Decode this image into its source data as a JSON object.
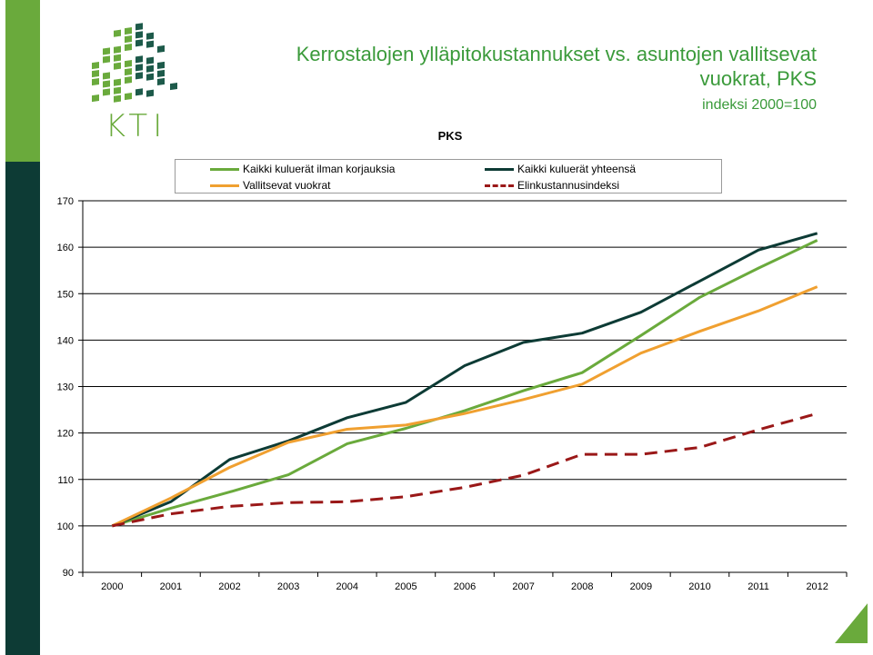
{
  "colors": {
    "sidebar_top": "#6aaa3c",
    "sidebar_bottom": "#0d3b35",
    "title_color": "#3a9a3a",
    "logo_light": "#6aaa3c",
    "logo_dark": "#1d5a4a"
  },
  "logo": {
    "text": "KTI"
  },
  "header": {
    "title": "Kerrostalojen ylläpitokustannukset vs. asuntojen vallitsevat vuokrat, PKS",
    "subtitle": "indeksi 2000=100"
  },
  "chart_data": {
    "type": "line",
    "title": "PKS",
    "categories": [
      "2000",
      "2001",
      "2002",
      "2003",
      "2004",
      "2005",
      "2006",
      "2007",
      "2008",
      "2009",
      "2010",
      "2011",
      "2012"
    ],
    "ylim": [
      90,
      170
    ],
    "yticks": [
      90,
      100,
      110,
      120,
      130,
      140,
      150,
      160,
      170
    ],
    "grid": true,
    "legend_placement": "top",
    "series": [
      {
        "name": "Kaikki kuluerät ilman korjauksia",
        "color": "#6aaa3c",
        "style": "solid",
        "values": [
          100,
          103.8,
          107.3,
          111,
          117.7,
          121,
          124.8,
          129.1,
          133,
          141,
          149.2,
          155.5,
          161.5
        ]
      },
      {
        "name": "Kaikki kuluerät yhteensä",
        "color": "#0d3b35",
        "style": "solid",
        "values": [
          100,
          105.2,
          114.3,
          118.3,
          123.3,
          126.6,
          134.5,
          139.5,
          141.5,
          146,
          152.7,
          159.4,
          163
        ]
      },
      {
        "name": "Vallitsevat vuokrat",
        "color": "#f0a030",
        "style": "solid",
        "values": [
          100,
          106,
          112.6,
          118,
          120.8,
          121.7,
          124.2,
          127.2,
          130.5,
          137.2,
          141.9,
          146.3,
          151.5
        ]
      },
      {
        "name": "Elinkustannusindeksi",
        "color": "#9a1818",
        "style": "dashed",
        "values": [
          100,
          102.6,
          104.2,
          105,
          105.2,
          106.3,
          108.3,
          110.9,
          115.4,
          115.4,
          116.9,
          120.7,
          124.2
        ]
      }
    ]
  }
}
